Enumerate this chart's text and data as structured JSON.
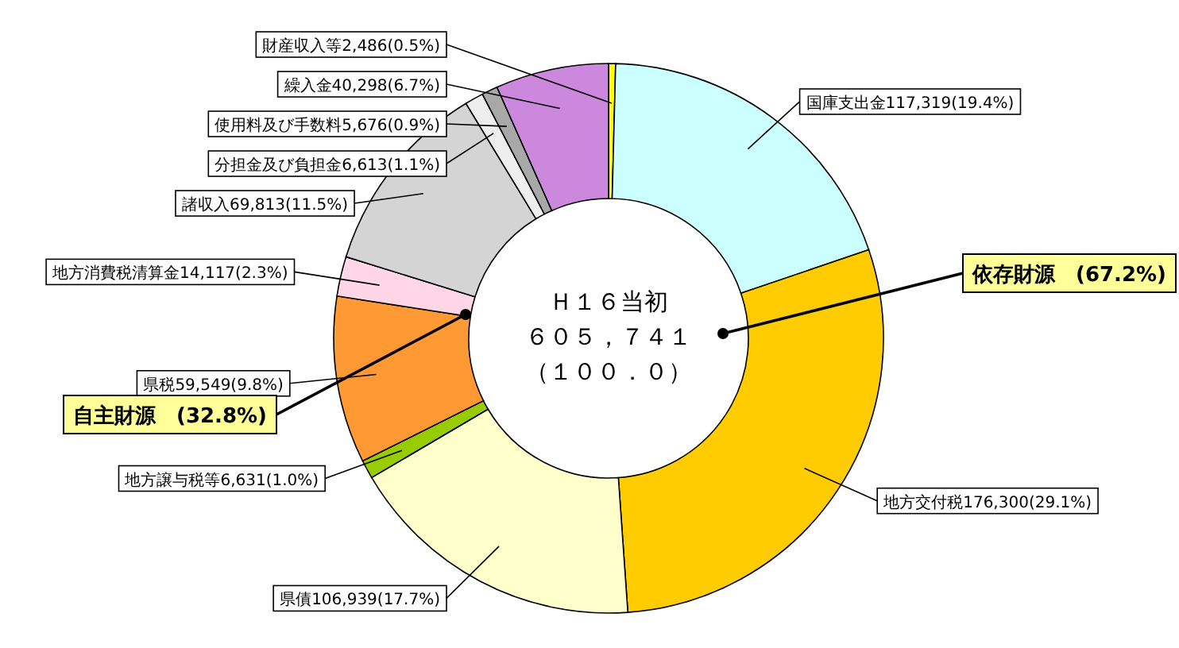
{
  "chart_data": {
    "type": "donut",
    "categories": [
      "財産収入等",
      "国庫支出金",
      "地方交付税",
      "県債",
      "地方譲与税等",
      "県税",
      "地方消費税清算金",
      "諸収入",
      "分担金及び負担金",
      "使用料及び手数料",
      "繰入金"
    ],
    "values": [
      2486,
      117319,
      176300,
      106939,
      6631,
      59549,
      14117,
      69813,
      6613,
      5676,
      40298
    ],
    "value_labels": [
      "2,486(0.5%)",
      "117,319(19.4%)",
      "176,300(29.1%)",
      "106,939(17.7%)",
      "6,631(1.0%)",
      "59,549(9.8%)",
      "14,117(2.3%)",
      "69,813(11.5%)",
      "6,613(1.1%)",
      "5,676(0.9%)",
      "40,298(6.7%)"
    ],
    "colors": [
      "#ffff00",
      "#ccffff",
      "#ffcc00",
      "#ffffcc",
      "#99cc00",
      "#ff9933",
      "#ffd6e6",
      "#d4d4d4",
      "#eeeeee",
      "#a8a8a8",
      "#cc88dd"
    ],
    "annotations": [
      "Ｈ１６当初",
      "６０５，７４１",
      "（１００．０）",
      "依存財源　(67.2%)",
      "自主財源　(32.8%)"
    ]
  }
}
